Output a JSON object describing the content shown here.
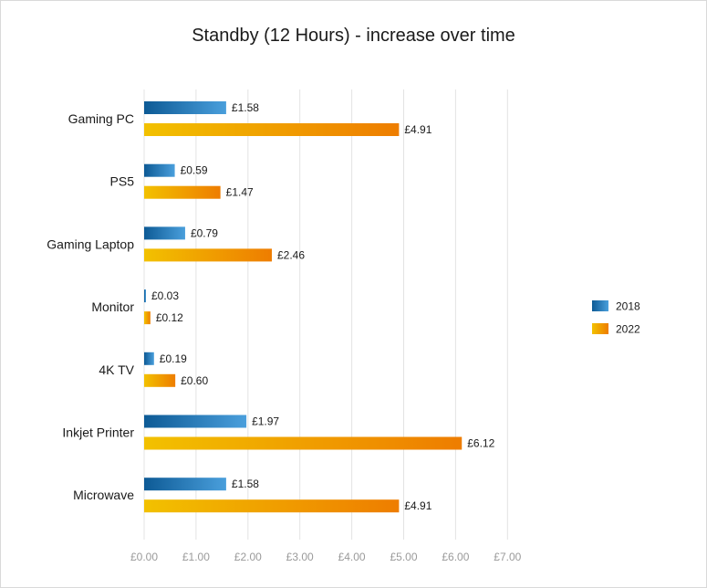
{
  "chart_data": {
    "type": "bar",
    "orientation": "horizontal",
    "title": "Standby  (12 Hours) - increase over time",
    "categories": [
      "Gaming PC",
      "PS5",
      "Gaming Laptop",
      "Monitor",
      "4K TV",
      "Inkjet Printer",
      "Microwave"
    ],
    "series": [
      {
        "name": "2018",
        "values": [
          1.58,
          0.59,
          0.79,
          0.03,
          0.19,
          1.97,
          1.58
        ],
        "labels": [
          "£1.58",
          "£0.59",
          "£0.79",
          "£0.03",
          "£0.19",
          "£1.97",
          "£1.58"
        ],
        "color_start": "#0d5a95",
        "color_end": "#4a9fdc"
      },
      {
        "name": "2022",
        "values": [
          4.91,
          1.47,
          2.46,
          0.12,
          0.6,
          6.12,
          4.91
        ],
        "labels": [
          "£4.91",
          "£1.47",
          "£2.46",
          "£0.12",
          "£0.60",
          "£6.12",
          "£4.91"
        ],
        "color_start": "#f2c100",
        "color_end": "#ee7d00"
      }
    ],
    "xlim": [
      0,
      7
    ],
    "xticks": [
      0,
      1,
      2,
      3,
      4,
      5,
      6,
      7
    ],
    "xtick_labels": [
      "£0.00",
      "£1.00",
      "£2.00",
      "£3.00",
      "£4.00",
      "£5.00",
      "£6.00",
      "£7.00"
    ],
    "xlabel": "",
    "ylabel": "",
    "grid": true,
    "legend_position": "right"
  }
}
